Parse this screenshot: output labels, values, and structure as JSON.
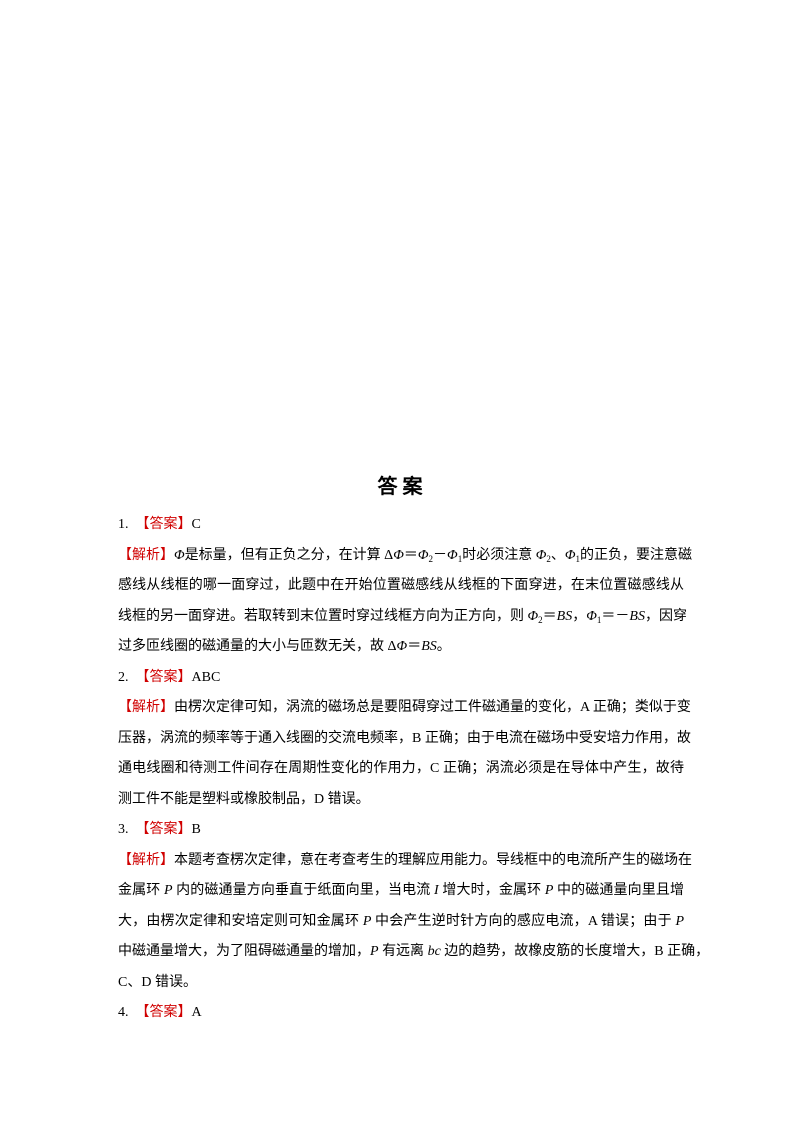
{
  "title": "答 案",
  "items": [
    {
      "number": "1.",
      "answer_label": "【答案】",
      "answer": "C",
      "analysis_label": "【解析】",
      "lines": [
        [
          {
            "i": "Φ"
          },
          "是标量，但有正负之分，在计算 Δ",
          {
            "i": "Φ"
          },
          "＝",
          {
            "i": "Φ"
          },
          {
            "sub": "2"
          },
          "－",
          {
            "i": "Φ"
          },
          {
            "sub": "1"
          },
          "时必须注意 ",
          {
            "i": "Φ"
          },
          {
            "sub": "2"
          },
          "、",
          {
            "i": "Φ"
          },
          {
            "sub": "1"
          },
          "的正负，要注意磁"
        ],
        [
          "感线从线框的哪一面穿过，此题中在开始位置磁感线从线框的下面穿进，在末位置磁感线从"
        ],
        [
          "线框的另一面穿进。若取转到末位置时穿过线框方向为正方向，则 ",
          {
            "i": "Φ"
          },
          {
            "sub": "2"
          },
          "＝",
          {
            "i": "BS"
          },
          "，",
          {
            "i": "Φ"
          },
          {
            "sub": "1"
          },
          "＝－",
          {
            "i": "BS"
          },
          "，因穿"
        ],
        [
          "过多匝线圈的磁通量的大小与匝数无关，故 Δ",
          {
            "i": "Φ"
          },
          "＝",
          {
            "i": "BS"
          },
          "。"
        ]
      ]
    },
    {
      "number": "2.",
      "answer_label": "【答案】",
      "answer": "ABC",
      "analysis_label": "【解析】",
      "lines": [
        [
          "由楞次定律可知，涡流的磁场总是要阻碍穿过工件磁通量的变化，A 正确；类似于变"
        ],
        [
          "压器，涡流的频率等于通入线圈的交流电频率，B 正确；由于电流在磁场中受安培力作用，故"
        ],
        [
          "通电线圈和待测工件间存在周期性变化的作用力，C 正确；涡流必须是在导体中产生，故待"
        ],
        [
          "测工件不能是塑料或橡胶制品，D 错误。"
        ]
      ]
    },
    {
      "number": "3.",
      "answer_label": "【答案】",
      "answer": "B",
      "analysis_label": "【解析】",
      "lines": [
        [
          "本题考查楞次定律，意在考查考生的理解应用能力。导线框中的电流所产生的磁场在"
        ],
        [
          "金属环 ",
          {
            "i": "P"
          },
          " 内的磁通量方向垂直于纸面向里，当电流 ",
          {
            "i": "I"
          },
          " 增大时，金属环 ",
          {
            "i": "P"
          },
          " 中的磁通量向里且增"
        ],
        [
          "大，由楞次定律和安培定则可知金属环 ",
          {
            "i": "P"
          },
          " 中会产生逆时针方向的感应电流，A 错误；由于 ",
          {
            "i": "P"
          }
        ],
        [
          "中磁通量增大，为了阻碍磁通量的增加，",
          {
            "i": "P"
          },
          " 有远离 ",
          {
            "i": "bc"
          },
          " 边的趋势，故橡皮筋的长度增大，B 正确，"
        ],
        [
          "C、D 错误。"
        ]
      ]
    },
    {
      "number": "4.",
      "answer_label": "【答案】",
      "answer": "A"
    }
  ]
}
